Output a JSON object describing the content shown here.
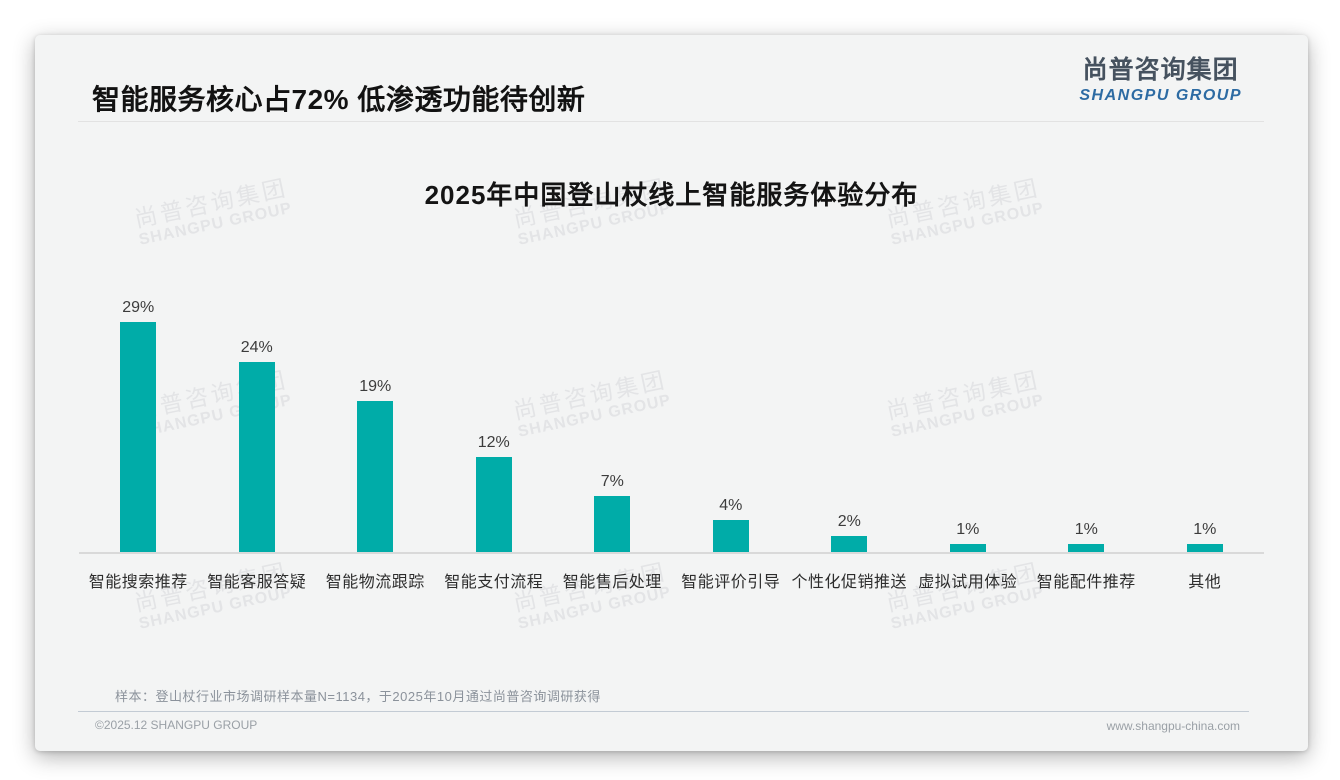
{
  "header": {
    "title": "智能服务核心占72% 低渗透功能待创新",
    "logo": {
      "cn": "尚普咨询集团",
      "en": "SHANGPU GROUP"
    }
  },
  "chart_data": {
    "type": "bar",
    "title": "2025年中国登山杖线上智能服务体验分布",
    "categories": [
      "智能搜索推荐",
      "智能客服答疑",
      "智能物流跟踪",
      "智能支付流程",
      "智能售后处理",
      "智能评价引导",
      "个性化促销推送",
      "虚拟试用体验",
      "智能配件推荐",
      "其他"
    ],
    "values": [
      29,
      24,
      19,
      12,
      7,
      4,
      2,
      1,
      1,
      1
    ],
    "unit": "%",
    "bar_color": "#00aca8",
    "ylim": [
      0,
      30
    ],
    "grid": false,
    "legend": false,
    "value_labels_shown": true
  },
  "footnote": "样本：登山杖行业市场调研样本量N=1134，于2025年10月通过尚普咨询调研获得",
  "footer": {
    "copyright": "©2025.12 SHANGPU GROUP",
    "website": "www.shangpu-china.com"
  },
  "watermark": {
    "cn": "尚普咨询集团",
    "en": "SHANGPU GROUP"
  }
}
